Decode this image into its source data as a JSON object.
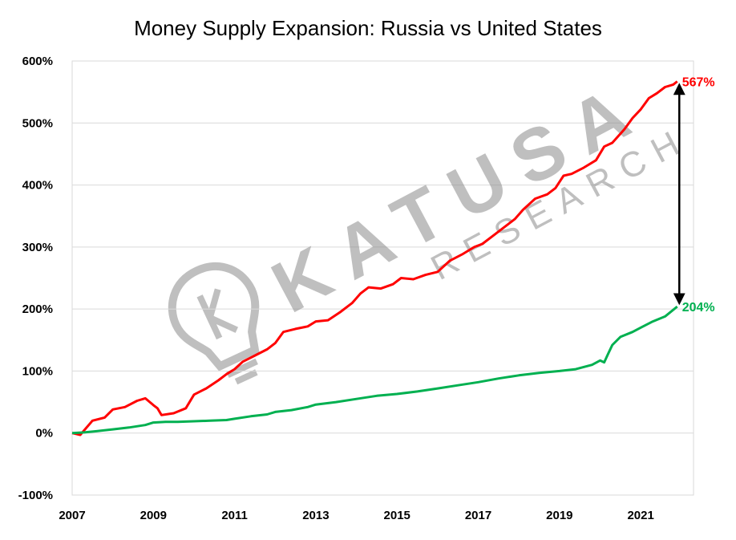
{
  "chart_data": {
    "type": "line",
    "title": "Money Supply Expansion: Russia vs United States",
    "xlabel": "",
    "ylabel": "",
    "xlim": [
      2007.0,
      2022.3
    ],
    "ylim": [
      -100,
      600
    ],
    "grid": true,
    "x_ticks": [
      2007,
      2009,
      2011,
      2013,
      2015,
      2017,
      2019,
      2021
    ],
    "x_tick_labels": [
      "2007",
      "2009",
      "2011",
      "2013",
      "2015",
      "2017",
      "2019",
      "2021"
    ],
    "y_ticks": [
      -100,
      0,
      100,
      200,
      300,
      400,
      500,
      600
    ],
    "y_tick_labels": [
      "-100%",
      "0%",
      "100%",
      "200%",
      "300%",
      "400%",
      "500%",
      "600%"
    ],
    "series": [
      {
        "color": "#ff0000",
        "end_label": "567%",
        "points": [
          [
            2007.0,
            0
          ],
          [
            2007.2,
            -3
          ],
          [
            2007.5,
            20
          ],
          [
            2007.8,
            25
          ],
          [
            2008.0,
            38
          ],
          [
            2008.3,
            42
          ],
          [
            2008.6,
            52
          ],
          [
            2008.8,
            56
          ],
          [
            2009.0,
            45
          ],
          [
            2009.1,
            40
          ],
          [
            2009.2,
            29
          ],
          [
            2009.5,
            32
          ],
          [
            2009.8,
            40
          ],
          [
            2010.0,
            62
          ],
          [
            2010.3,
            72
          ],
          [
            2010.6,
            85
          ],
          [
            2010.8,
            95
          ],
          [
            2011.0,
            103
          ],
          [
            2011.2,
            115
          ],
          [
            2011.5,
            125
          ],
          [
            2011.8,
            135
          ],
          [
            2012.0,
            145
          ],
          [
            2012.2,
            163
          ],
          [
            2012.5,
            168
          ],
          [
            2012.8,
            172
          ],
          [
            2013.0,
            180
          ],
          [
            2013.3,
            182
          ],
          [
            2013.6,
            195
          ],
          [
            2013.9,
            210
          ],
          [
            2014.1,
            225
          ],
          [
            2014.3,
            235
          ],
          [
            2014.6,
            233
          ],
          [
            2014.9,
            240
          ],
          [
            2015.1,
            250
          ],
          [
            2015.4,
            248
          ],
          [
            2015.7,
            255
          ],
          [
            2016.0,
            260
          ],
          [
            2016.3,
            278
          ],
          [
            2016.6,
            288
          ],
          [
            2016.9,
            300
          ],
          [
            2017.1,
            305
          ],
          [
            2017.4,
            320
          ],
          [
            2017.6,
            330
          ],
          [
            2017.9,
            345
          ],
          [
            2018.1,
            360
          ],
          [
            2018.4,
            378
          ],
          [
            2018.7,
            385
          ],
          [
            2018.9,
            395
          ],
          [
            2019.1,
            415
          ],
          [
            2019.3,
            418
          ],
          [
            2019.6,
            428
          ],
          [
            2019.9,
            440
          ],
          [
            2020.1,
            462
          ],
          [
            2020.3,
            468
          ],
          [
            2020.6,
            490
          ],
          [
            2020.8,
            508
          ],
          [
            2021.0,
            522
          ],
          [
            2021.2,
            540
          ],
          [
            2021.4,
            548
          ],
          [
            2021.6,
            558
          ],
          [
            2021.8,
            562
          ],
          [
            2021.9,
            567
          ]
        ]
      },
      {
        "color": "#00b050",
        "end_label": "204%",
        "points": [
          [
            2007.0,
            0
          ],
          [
            2007.3,
            1
          ],
          [
            2007.6,
            3
          ],
          [
            2008.0,
            6
          ],
          [
            2008.4,
            9
          ],
          [
            2008.8,
            13
          ],
          [
            2009.0,
            17
          ],
          [
            2009.3,
            18
          ],
          [
            2009.6,
            18
          ],
          [
            2010.0,
            19
          ],
          [
            2010.4,
            20
          ],
          [
            2010.8,
            21
          ],
          [
            2011.0,
            23
          ],
          [
            2011.4,
            27
          ],
          [
            2011.8,
            30
          ],
          [
            2012.0,
            34
          ],
          [
            2012.4,
            37
          ],
          [
            2012.8,
            42
          ],
          [
            2013.0,
            46
          ],
          [
            2013.5,
            50
          ],
          [
            2014.0,
            55
          ],
          [
            2014.5,
            60
          ],
          [
            2015.0,
            63
          ],
          [
            2015.5,
            67
          ],
          [
            2016.0,
            72
          ],
          [
            2016.5,
            77
          ],
          [
            2017.0,
            82
          ],
          [
            2017.5,
            88
          ],
          [
            2018.0,
            93
          ],
          [
            2018.5,
            97
          ],
          [
            2019.0,
            100
          ],
          [
            2019.4,
            103
          ],
          [
            2019.8,
            110
          ],
          [
            2020.0,
            117
          ],
          [
            2020.1,
            114
          ],
          [
            2020.2,
            128
          ],
          [
            2020.3,
            142
          ],
          [
            2020.5,
            155
          ],
          [
            2020.8,
            163
          ],
          [
            2021.0,
            170
          ],
          [
            2021.3,
            180
          ],
          [
            2021.6,
            188
          ],
          [
            2021.9,
            204
          ]
        ]
      }
    ],
    "annotations": [
      {
        "type": "double-arrow",
        "x": 2021.95,
        "y_from": 555,
        "y_to": 216,
        "color": "#000000"
      }
    ],
    "watermark": "KATUSA RESEARCH"
  }
}
